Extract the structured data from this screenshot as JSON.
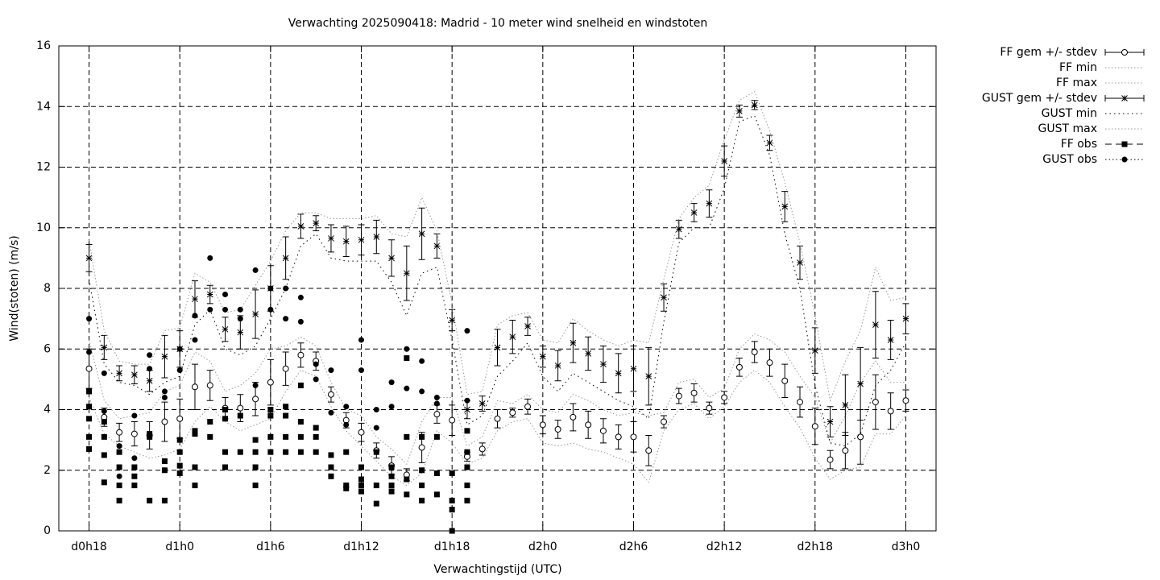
{
  "chart_data": {
    "type": "errorbar",
    "title": "Verwachting 2025090418: Madrid - 10 meter wind snelheid en windstoten",
    "xlabel": "Verwachtingstijd (UTC)",
    "ylabel": "Wind(stoten) (m/s)",
    "xlim": [
      16,
      74
    ],
    "xticks": [
      {
        "value": 18,
        "label": "d0h18"
      },
      {
        "value": 24,
        "label": "d1h0"
      },
      {
        "value": 30,
        "label": "d1h6"
      },
      {
        "value": 36,
        "label": "d1h12"
      },
      {
        "value": 42,
        "label": "d1h18"
      },
      {
        "value": 48,
        "label": "d2h0"
      },
      {
        "value": 54,
        "label": "d2h6"
      },
      {
        "value": 60,
        "label": "d2h12"
      },
      {
        "value": 66,
        "label": "d2h18"
      },
      {
        "value": 72,
        "label": "d3h0"
      }
    ],
    "ylim": [
      0,
      16
    ],
    "yticks": [
      0,
      2,
      4,
      6,
      8,
      10,
      12,
      14,
      16
    ],
    "grid": true,
    "legend": "outside-right-top",
    "x": [
      18,
      19,
      20,
      21,
      22,
      23,
      24,
      25,
      26,
      27,
      28,
      29,
      30,
      31,
      32,
      33,
      34,
      35,
      36,
      37,
      38,
      39,
      40,
      41,
      42,
      43,
      44,
      45,
      46,
      47,
      48,
      49,
      50,
      51,
      52,
      53,
      54,
      55,
      56,
      57,
      58,
      59,
      60,
      61,
      62,
      63,
      64,
      65,
      66,
      67,
      68,
      69,
      70,
      71,
      72
    ],
    "series": [
      {
        "name": "FF gem +/- stdev",
        "color": "#000000",
        "style": "errorbars",
        "marker": "open-circle",
        "values": [
          5.35,
          3.75,
          3.25,
          3.2,
          3.15,
          3.6,
          3.7,
          4.75,
          4.8,
          4.05,
          4.05,
          4.35,
          4.9,
          5.35,
          5.8,
          5.6,
          4.5,
          3.65,
          3.25,
          2.65,
          2.15,
          1.85,
          2.75,
          3.85,
          3.65,
          2.45,
          2.7,
          3.7,
          3.9,
          4.1,
          3.5,
          3.35,
          3.75,
          3.5,
          3.3,
          3.1,
          3.1,
          2.65,
          3.6,
          4.45,
          4.55,
          4.05,
          4.4,
          5.4,
          5.9,
          5.55,
          4.95,
          4.25,
          3.45,
          2.35,
          2.65,
          3.1,
          4.25,
          3.95,
          4.3
        ],
        "errors": [
          0.65,
          0.3,
          0.3,
          0.4,
          0.45,
          0.65,
          0.65,
          0.75,
          0.5,
          0.35,
          0.45,
          0.55,
          0.75,
          0.55,
          0.4,
          0.3,
          0.25,
          0.25,
          0.3,
          0.25,
          0.3,
          0.2,
          0.5,
          0.3,
          0.5,
          0.15,
          0.2,
          0.3,
          0.15,
          0.25,
          0.3,
          0.3,
          0.45,
          0.45,
          0.4,
          0.4,
          0.5,
          0.5,
          0.2,
          0.25,
          0.3,
          0.2,
          0.2,
          0.3,
          0.35,
          0.45,
          0.55,
          0.5,
          0.6,
          0.3,
          0.6,
          0.9,
          0.9,
          0.6,
          0.35
        ]
      },
      {
        "name": "FF min",
        "color": "#999999",
        "style": "line",
        "values": [
          4.4,
          3.2,
          2.8,
          2.6,
          2.4,
          2.5,
          2.7,
          3.6,
          4.1,
          3.6,
          3.3,
          3.5,
          3.7,
          4.6,
          5.3,
          5.1,
          4.1,
          3.3,
          2.8,
          2.3,
          1.8,
          1.5,
          1.9,
          3.3,
          2.9,
          2.2,
          2.4,
          3.3,
          3.6,
          3.7,
          2.9,
          2.8,
          2.9,
          2.7,
          2.6,
          2.4,
          2.2,
          1.6,
          3.3,
          4.0,
          4.2,
          3.7,
          4.1,
          4.9,
          5.3,
          4.9,
          4.1,
          3.4,
          2.4,
          1.7,
          2.0,
          2.1,
          3.2,
          3.2,
          3.8
        ]
      },
      {
        "name": "FF max",
        "color": "#999999",
        "style": "line",
        "values": [
          6.3,
          4.3,
          3.7,
          3.8,
          3.9,
          4.6,
          4.8,
          5.9,
          5.6,
          4.6,
          4.8,
          5.2,
          6.0,
          6.1,
          6.4,
          6.1,
          4.9,
          4.0,
          3.8,
          3.1,
          2.7,
          2.2,
          3.6,
          4.4,
          4.4,
          2.8,
          3.1,
          4.3,
          4.2,
          4.5,
          4.0,
          3.9,
          4.5,
          4.3,
          4.0,
          3.8,
          3.9,
          3.8,
          3.9,
          4.9,
          5.0,
          4.4,
          4.7,
          6.0,
          6.5,
          6.3,
          5.9,
          5.1,
          4.4,
          2.9,
          3.8,
          4.9,
          5.6,
          4.9,
          4.9
        ]
      },
      {
        "name": "GUST gem +/- stdev",
        "color": "#000000",
        "style": "errorbars",
        "marker": "star",
        "values": [
          9.0,
          6.05,
          5.2,
          5.15,
          4.95,
          5.75,
          6.0,
          7.65,
          7.8,
          6.65,
          6.55,
          7.15,
          8.0,
          9.0,
          10.05,
          10.15,
          9.65,
          9.55,
          9.6,
          9.7,
          9.0,
          8.5,
          9.8,
          9.4,
          6.95,
          4.0,
          4.2,
          6.05,
          6.4,
          6.75,
          5.75,
          5.45,
          6.2,
          5.85,
          5.5,
          5.2,
          5.35,
          5.1,
          7.7,
          9.95,
          10.5,
          10.8,
          12.2,
          13.85,
          14.05,
          12.8,
          10.7,
          8.85,
          5.95,
          3.6,
          4.15,
          4.85,
          6.8,
          6.3,
          7.0
        ],
        "errors": [
          0.45,
          0.4,
          0.25,
          0.3,
          0.35,
          0.7,
          0.6,
          0.6,
          0.3,
          0.4,
          0.55,
          0.8,
          0.75,
          0.7,
          0.4,
          0.25,
          0.45,
          0.5,
          0.5,
          0.55,
          0.6,
          0.9,
          0.85,
          0.4,
          0.35,
          0.3,
          0.25,
          0.6,
          0.55,
          0.3,
          0.35,
          0.5,
          0.65,
          0.55,
          0.6,
          0.65,
          0.75,
          0.95,
          0.45,
          0.3,
          0.3,
          0.45,
          0.5,
          0.2,
          0.15,
          0.25,
          0.5,
          0.55,
          0.75,
          0.5,
          1.0,
          1.2,
          1.1,
          0.65,
          0.5
        ]
      },
      {
        "name": "GUST min",
        "color": "#000000",
        "style": "line",
        "values": [
          8.3,
          5.5,
          4.9,
          4.8,
          4.5,
          4.9,
          5.1,
          6.8,
          7.3,
          6.0,
          5.8,
          6.1,
          7.0,
          8.0,
          9.4,
          9.8,
          9.0,
          8.9,
          8.9,
          8.9,
          8.2,
          7.1,
          8.5,
          8.7,
          6.3,
          3.5,
          3.8,
          5.1,
          5.6,
          6.2,
          5.1,
          4.6,
          5.2,
          4.9,
          4.6,
          4.3,
          4.1,
          3.7,
          6.9,
          9.5,
          10.0,
          10.0,
          11.3,
          13.5,
          13.7,
          12.4,
          9.8,
          8.0,
          4.8,
          2.9,
          2.8,
          3.2,
          4.8,
          5.3,
          6.2
        ]
      },
      {
        "name": "GUST max",
        "color": "#999999",
        "style": "line",
        "values": [
          9.6,
          6.6,
          5.6,
          5.5,
          5.5,
          6.6,
          6.7,
          8.5,
          8.2,
          7.2,
          7.3,
          8.1,
          8.9,
          9.9,
          10.5,
          10.5,
          10.3,
          10.3,
          10.3,
          10.4,
          9.8,
          9.7,
          11.0,
          9.9,
          7.5,
          4.5,
          4.6,
          6.8,
          7.1,
          7.2,
          6.3,
          6.2,
          7.0,
          6.6,
          6.3,
          6.1,
          6.3,
          6.2,
          8.3,
          10.3,
          11.0,
          11.4,
          12.9,
          14.2,
          14.5,
          13.2,
          11.5,
          9.5,
          7.1,
          4.3,
          5.6,
          6.6,
          8.7,
          7.6,
          7.7
        ]
      },
      {
        "name": "FF obs",
        "color": "#000000",
        "style": "points",
        "marker": "square",
        "x": [
          18,
          18,
          18,
          18,
          18,
          19,
          19,
          19,
          19,
          20,
          20,
          20,
          20,
          21,
          21,
          21,
          22,
          22,
          22,
          23,
          23,
          23,
          24,
          24,
          24,
          24,
          25,
          25,
          25,
          25,
          26,
          26,
          27,
          27,
          27,
          27,
          28,
          28,
          29,
          29,
          29,
          29,
          30,
          30,
          30,
          30,
          31,
          31,
          31,
          31,
          32,
          32,
          32,
          32,
          33,
          33,
          33,
          34,
          34,
          34,
          35,
          35,
          35,
          36,
          36,
          36,
          36,
          37,
          37,
          37,
          38,
          38,
          38,
          38,
          39,
          39,
          39,
          39,
          40,
          40,
          40,
          40,
          41,
          41,
          41,
          42,
          42,
          42,
          42,
          43,
          43,
          43,
          43,
          43
        ],
        "values": [
          4.6,
          4.1,
          3.7,
          3.1,
          2.7,
          3.6,
          3.1,
          2.5,
          1.6,
          2.6,
          2.1,
          1.5,
          1.0,
          2.1,
          1.8,
          1.5,
          3.2,
          3.1,
          1.0,
          2.3,
          2.0,
          1.0,
          3.0,
          2.6,
          2.15,
          1.9,
          3.3,
          3.2,
          2.1,
          1.5,
          3.6,
          3.1,
          4.0,
          3.7,
          2.6,
          2.1,
          3.8,
          2.6,
          3.0,
          2.6,
          2.1,
          1.5,
          4.0,
          3.8,
          3.1,
          2.6,
          4.1,
          3.8,
          3.1,
          2.6,
          4.8,
          3.6,
          3.1,
          2.6,
          3.4,
          3.1,
          2.6,
          2.5,
          2.1,
          1.8,
          2.6,
          1.5,
          1.4,
          2.1,
          1.7,
          1.5,
          1.3,
          2.6,
          1.5,
          0.9,
          2.1,
          1.8,
          1.5,
          1.3,
          5.7,
          3.1,
          1.7,
          1.2,
          3.1,
          2.0,
          1.5,
          1.0,
          3.1,
          1.9,
          1.2,
          1.9,
          1.0,
          0.7,
          0.0,
          3.3,
          2.6,
          2.1,
          1.5,
          1.0
        ]
      },
      {
        "name": "GUST obs",
        "color": "#000000",
        "style": "points",
        "marker": "circle",
        "x": [
          18,
          18,
          19,
          19,
          20,
          20,
          21,
          21,
          22,
          22,
          23,
          23,
          24,
          24,
          25,
          25,
          26,
          26,
          27,
          27,
          28,
          28,
          29,
          29,
          30,
          30,
          31,
          31,
          32,
          32,
          33,
          33,
          34,
          34,
          35,
          35,
          36,
          36,
          37,
          37,
          38,
          38,
          39,
          39,
          40,
          40,
          41,
          41,
          42,
          43,
          43
        ],
        "values": [
          7.0,
          5.9,
          5.2,
          3.95,
          2.8,
          1.8,
          3.8,
          2.4,
          5.8,
          5.35,
          4.6,
          4.4,
          6.0,
          5.3,
          7.1,
          6.3,
          9.0,
          7.3,
          7.8,
          7.3,
          7.3,
          7.0,
          8.6,
          4.8,
          8.0,
          7.3,
          8.0,
          7.0,
          7.7,
          6.9,
          5.5,
          5.0,
          5.3,
          3.9,
          4.1,
          3.5,
          6.3,
          5.3,
          4.0,
          3.4,
          4.9,
          4.1,
          6.0,
          4.7,
          5.6,
          4.6,
          4.4,
          4.2,
          1.9,
          6.6,
          4.3
        ]
      }
    ]
  }
}
